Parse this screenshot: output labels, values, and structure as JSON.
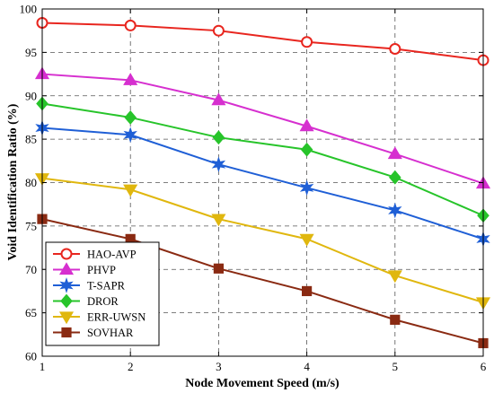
{
  "chart_data": {
    "type": "line",
    "title": "",
    "xlabel": "Node Movement Speed (m/s)",
    "ylabel": "Void Identification Ratio (%)",
    "x": [
      1,
      2,
      3,
      4,
      5,
      6
    ],
    "xlim": [
      1,
      6
    ],
    "ylim": [
      60,
      100
    ],
    "xticks": [
      1,
      2,
      3,
      4,
      5,
      6
    ],
    "yticks": [
      60,
      65,
      70,
      75,
      80,
      85,
      90,
      95,
      100
    ],
    "grid": true,
    "legend_position": "bottom-left",
    "series": [
      {
        "name": "HAO-AVP",
        "color": "#e8261f",
        "marker": "circle",
        "values": [
          98.4,
          98.1,
          97.5,
          96.2,
          95.4,
          94.1
        ]
      },
      {
        "name": "PHVP",
        "color": "#d62fcf",
        "marker": "triangle-up",
        "values": [
          92.5,
          91.8,
          89.5,
          86.5,
          83.3,
          79.9
        ]
      },
      {
        "name": "T-SAPR",
        "color": "#1f5fd6",
        "marker": "star",
        "values": [
          86.3,
          85.5,
          82.1,
          79.4,
          76.8,
          73.5
        ]
      },
      {
        "name": "DROR",
        "color": "#27c42a",
        "marker": "diamond",
        "values": [
          89.1,
          87.5,
          85.2,
          83.8,
          80.6,
          76.2
        ]
      },
      {
        "name": "ERR-UWSN",
        "color": "#e0b70e",
        "marker": "triangle-down",
        "values": [
          80.5,
          79.2,
          75.8,
          73.5,
          69.3,
          66.2
        ]
      },
      {
        "name": "SOVHAR",
        "color": "#8a2a12",
        "marker": "square",
        "values": [
          75.8,
          73.5,
          70.1,
          67.5,
          64.2,
          61.5
        ]
      }
    ]
  }
}
